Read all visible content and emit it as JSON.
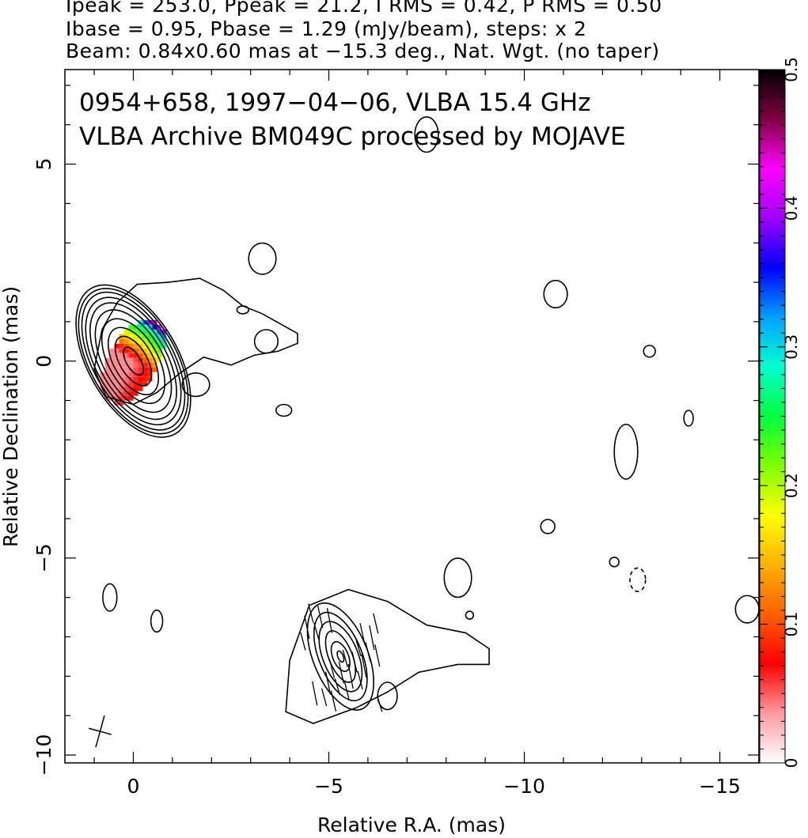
{
  "header": {
    "line1": "Ipeak = 253.0, Ppeak = 21.2, I RMS = 0.42, P RMS = 0.50",
    "line2": "Ibase = 0.95, Pbase = 1.29 (mJy/beam), steps: x 2",
    "line3": "Beam: 0.84x0.60 mas at −15.3 deg., Nat. Wgt. (no taper)"
  },
  "chart_data": {
    "type": "heatmap",
    "title_line1": "0954+658, 1997−04−06, VLBA 15.4 GHz",
    "title_line2": "VLBA Archive BM049C processed by MOJAVE",
    "xlabel": "Relative R.A. (mas)",
    "ylabel": "Relative Declination (mas)",
    "xlim": [
      1.75,
      -16.0
    ],
    "ylim": [
      -10.2,
      7.4
    ],
    "x_ticks": [
      0,
      -5,
      -10,
      -15
    ],
    "x_tick_labels": [
      "0",
      "−5",
      "−10",
      "−15"
    ],
    "y_ticks": [
      5,
      0,
      -5,
      -10
    ],
    "y_tick_labels": [
      "5",
      "0",
      "−5",
      "−10"
    ],
    "colorbar": {
      "range": [
        0,
        0.5
      ],
      "ticks": [
        0,
        0.1,
        0.2,
        0.3,
        0.4,
        0.5
      ],
      "tick_labels": [
        "0",
        "0.1",
        "0.2",
        "0.3",
        "0.4",
        "0.5"
      ]
    },
    "core": {
      "center": [
        0,
        0
      ],
      "contour_axes_mas": [
        [
          0.4,
          0.18
        ],
        [
          0.7,
          0.35
        ],
        [
          0.95,
          0.5
        ],
        [
          1.2,
          0.62
        ],
        [
          1.45,
          0.75
        ],
        [
          1.65,
          0.85
        ],
        [
          1.8,
          0.95
        ],
        [
          1.95,
          1.02
        ],
        [
          2.05,
          1.1
        ],
        [
          2.15,
          1.15
        ]
      ],
      "position_angle_deg": 30
    },
    "jet_component": {
      "center": [
        -5.3,
        -7.5
      ],
      "contour_axes_mas": [
        [
          0.15,
          0.07
        ],
        [
          0.4,
          0.2
        ],
        [
          0.7,
          0.3
        ],
        [
          0.95,
          0.45
        ],
        [
          1.2,
          0.55
        ],
        [
          1.45,
          0.7
        ]
      ],
      "position_angle_deg": 22
    },
    "islands": [
      {
        "x": -3.3,
        "y": 2.6,
        "rx": 0.35,
        "ry": 0.4
      },
      {
        "x": -3.4,
        "y": 0.5,
        "rx": 0.3,
        "ry": 0.3
      },
      {
        "x": -2.8,
        "y": 1.3,
        "rx": 0.15,
        "ry": 0.1
      },
      {
        "x": -1.6,
        "y": -0.6,
        "rx": 0.35,
        "ry": 0.3
      },
      {
        "x": -3.85,
        "y": -1.25,
        "rx": 0.2,
        "ry": 0.15
      },
      {
        "x": -7.5,
        "y": 5.75,
        "rx": 0.3,
        "ry": 0.45
      },
      {
        "x": -10.8,
        "y": 1.7,
        "rx": 0.3,
        "ry": 0.35
      },
      {
        "x": -13.2,
        "y": 0.25,
        "rx": 0.15,
        "ry": 0.15
      },
      {
        "x": -14.2,
        "y": -1.45,
        "rx": 0.12,
        "ry": 0.2
      },
      {
        "x": -12.6,
        "y": -2.3,
        "rx": 0.3,
        "ry": 0.7
      },
      {
        "x": -10.6,
        "y": -4.2,
        "rx": 0.18,
        "ry": 0.18
      },
      {
        "x": -12.3,
        "y": -5.1,
        "rx": 0.12,
        "ry": 0.12
      },
      {
        "x": -8.3,
        "y": -5.5,
        "rx": 0.35,
        "ry": 0.5
      },
      {
        "x": -8.6,
        "y": -6.45,
        "rx": 0.1,
        "ry": 0.1
      },
      {
        "x": -6.5,
        "y": -8.5,
        "rx": 0.25,
        "ry": 0.35
      },
      {
        "x": 0.6,
        "y": -6.0,
        "rx": 0.18,
        "ry": 0.35
      },
      {
        "x": -0.6,
        "y": -6.6,
        "rx": 0.15,
        "ry": 0.28
      },
      {
        "x": -15.7,
        "y": -6.3,
        "rx": 0.3,
        "ry": 0.35
      }
    ],
    "negative_islands": [
      {
        "x": -12.9,
        "y": -5.55,
        "rx": 0.2,
        "ry": 0.3
      }
    ],
    "beam": {
      "major": 0.84,
      "minor": 0.6,
      "pa_deg": -15.3,
      "center": [
        0.85,
        -9.4
      ]
    }
  },
  "colors": {
    "colorbar_stops": [
      "#ffffff",
      "#ff9aa0",
      "#ff0000",
      "#ff6000",
      "#ffb000",
      "#ffff00",
      "#80ff00",
      "#00ff40",
      "#00ffd0",
      "#00a0ff",
      "#0000ff",
      "#a000ff",
      "#ff00ff",
      "#800040",
      "#000000"
    ],
    "contour": "#000000"
  }
}
